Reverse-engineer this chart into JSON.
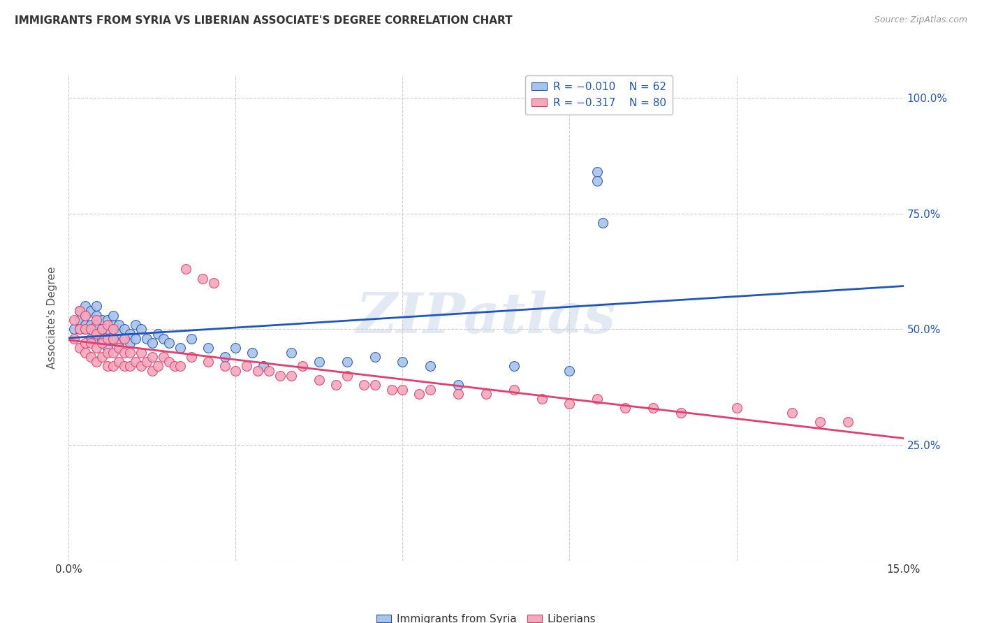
{
  "title": "IMMIGRANTS FROM SYRIA VS LIBERIAN ASSOCIATE'S DEGREE CORRELATION CHART",
  "source": "Source: ZipAtlas.com",
  "ylabel": "Associate's Degree",
  "xlim": [
    0.0,
    0.15
  ],
  "ylim": [
    0.0,
    1.05
  ],
  "color_syria": "#a8c4e8",
  "color_liberia": "#f4a8bc",
  "line_color_syria": "#2255bb",
  "line_color_liberia": "#e04070",
  "watermark": "ZIPatlas",
  "background_color": "#ffffff",
  "grid_color": "#cccccc",
  "title_color": "#333333",
  "right_tick_color": "#2255bb",
  "syria_x": [
    0.001,
    0.002,
    0.002,
    0.002,
    0.003,
    0.003,
    0.003,
    0.003,
    0.004,
    0.004,
    0.004,
    0.004,
    0.005,
    0.005,
    0.005,
    0.005,
    0.005,
    0.006,
    0.006,
    0.006,
    0.006,
    0.007,
    0.007,
    0.007,
    0.007,
    0.008,
    0.008,
    0.008,
    0.009,
    0.009,
    0.009,
    0.01,
    0.01,
    0.011,
    0.011,
    0.012,
    0.012,
    0.013,
    0.014,
    0.015,
    0.016,
    0.017,
    0.018,
    0.02,
    0.022,
    0.025,
    0.028,
    0.03,
    0.033,
    0.035,
    0.04,
    0.045,
    0.05,
    0.055,
    0.06,
    0.065,
    0.07,
    0.08,
    0.09,
    0.095,
    0.095,
    0.096
  ],
  "syria_y": [
    0.5,
    0.5,
    0.52,
    0.54,
    0.5,
    0.51,
    0.53,
    0.55,
    0.48,
    0.5,
    0.51,
    0.54,
    0.48,
    0.49,
    0.51,
    0.53,
    0.55,
    0.47,
    0.48,
    0.5,
    0.52,
    0.46,
    0.48,
    0.5,
    0.52,
    0.48,
    0.51,
    0.53,
    0.47,
    0.49,
    0.51,
    0.48,
    0.5,
    0.47,
    0.49,
    0.48,
    0.51,
    0.5,
    0.48,
    0.47,
    0.49,
    0.48,
    0.47,
    0.46,
    0.48,
    0.46,
    0.44,
    0.46,
    0.45,
    0.42,
    0.45,
    0.43,
    0.43,
    0.44,
    0.43,
    0.42,
    0.38,
    0.42,
    0.41,
    0.84,
    0.82,
    0.73
  ],
  "liberia_x": [
    0.001,
    0.001,
    0.002,
    0.002,
    0.002,
    0.003,
    0.003,
    0.003,
    0.003,
    0.004,
    0.004,
    0.004,
    0.005,
    0.005,
    0.005,
    0.005,
    0.006,
    0.006,
    0.006,
    0.007,
    0.007,
    0.007,
    0.007,
    0.008,
    0.008,
    0.008,
    0.008,
    0.009,
    0.009,
    0.01,
    0.01,
    0.01,
    0.011,
    0.011,
    0.012,
    0.013,
    0.013,
    0.014,
    0.015,
    0.015,
    0.016,
    0.017,
    0.018,
    0.019,
    0.02,
    0.021,
    0.022,
    0.024,
    0.025,
    0.026,
    0.028,
    0.03,
    0.032,
    0.034,
    0.036,
    0.038,
    0.04,
    0.042,
    0.045,
    0.048,
    0.05,
    0.053,
    0.055,
    0.058,
    0.06,
    0.063,
    0.065,
    0.07,
    0.075,
    0.08,
    0.085,
    0.09,
    0.095,
    0.1,
    0.105,
    0.11,
    0.12,
    0.13,
    0.135,
    0.14
  ],
  "liberia_y": [
    0.48,
    0.52,
    0.46,
    0.5,
    0.54,
    0.45,
    0.47,
    0.5,
    0.53,
    0.44,
    0.47,
    0.5,
    0.43,
    0.46,
    0.49,
    0.52,
    0.44,
    0.47,
    0.5,
    0.42,
    0.45,
    0.48,
    0.51,
    0.42,
    0.45,
    0.48,
    0.5,
    0.43,
    0.46,
    0.42,
    0.45,
    0.48,
    0.42,
    0.45,
    0.43,
    0.42,
    0.45,
    0.43,
    0.41,
    0.44,
    0.42,
    0.44,
    0.43,
    0.42,
    0.42,
    0.63,
    0.44,
    0.61,
    0.43,
    0.6,
    0.42,
    0.41,
    0.42,
    0.41,
    0.41,
    0.4,
    0.4,
    0.42,
    0.39,
    0.38,
    0.4,
    0.38,
    0.38,
    0.37,
    0.37,
    0.36,
    0.37,
    0.36,
    0.36,
    0.37,
    0.35,
    0.34,
    0.35,
    0.33,
    0.33,
    0.32,
    0.33,
    0.32,
    0.3,
    0.3
  ]
}
